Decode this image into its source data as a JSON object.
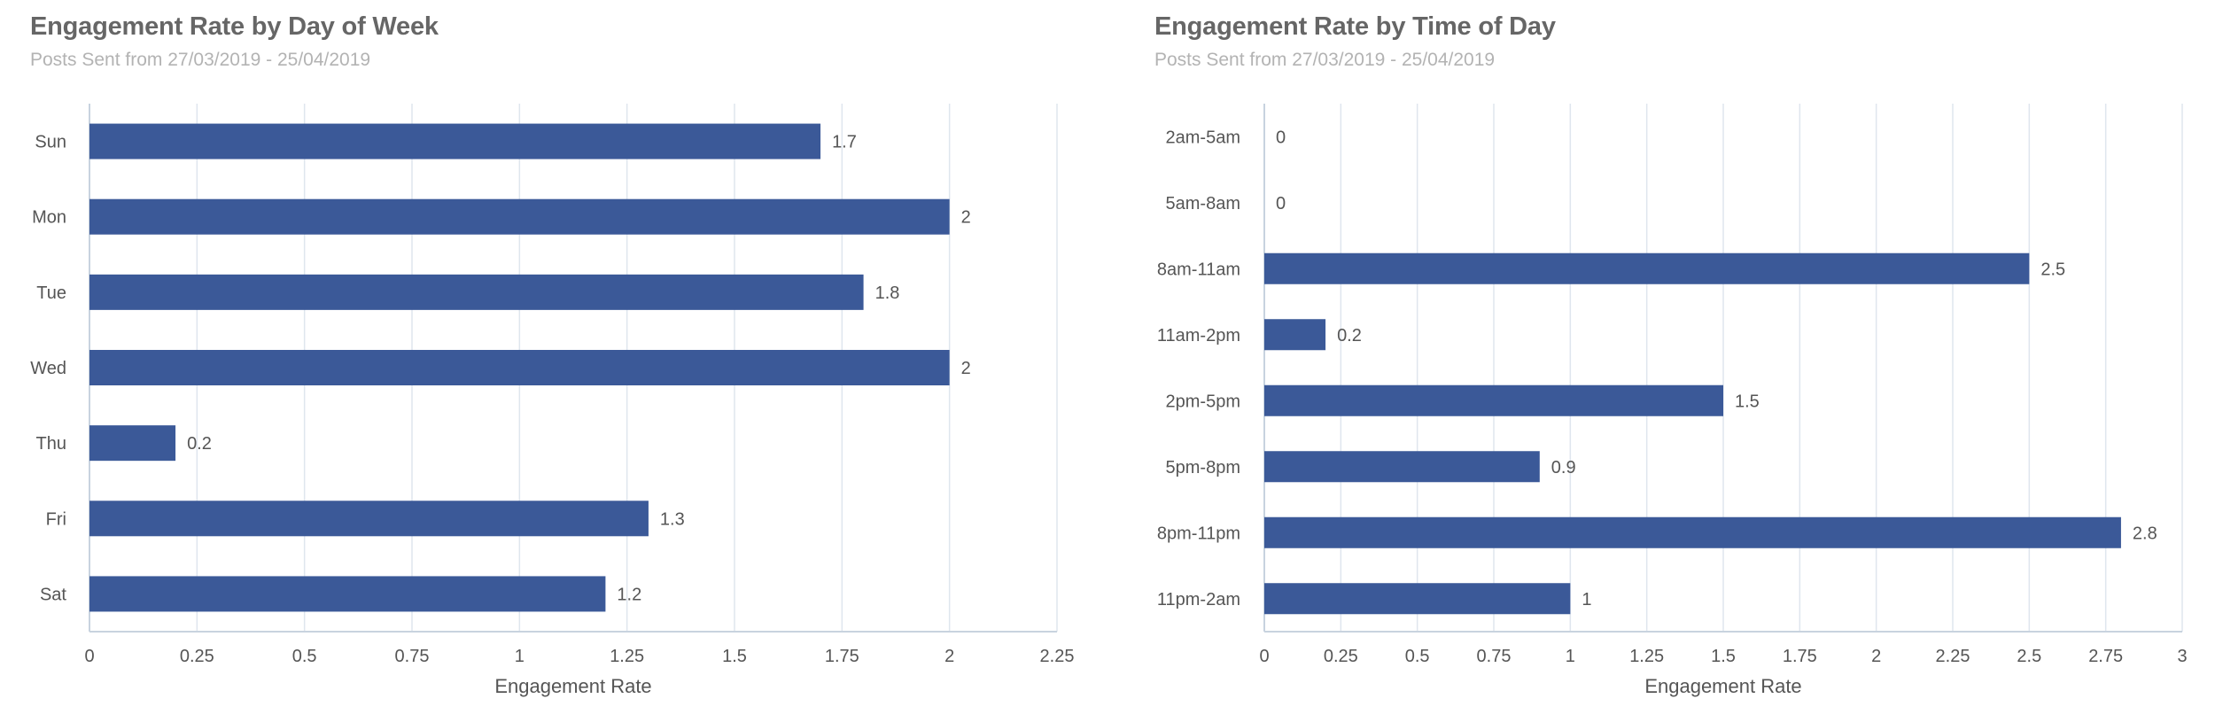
{
  "chart_data": [
    {
      "type": "bar",
      "orientation": "horizontal",
      "title": "Engagement Rate by Day of Week",
      "subtitle": "Posts Sent from 27/03/2019 - 25/04/2019",
      "categories": [
        "Sun",
        "Mon",
        "Tue",
        "Wed",
        "Thu",
        "Fri",
        "Sat"
      ],
      "values": [
        1.7,
        2,
        1.8,
        2,
        0.2,
        1.3,
        1.2
      ],
      "value_labels": [
        "1.7",
        "2",
        "1.8",
        "2",
        "0.2",
        "1.3",
        "1.2"
      ],
      "xlabel": "Engagement Rate",
      "ylabel": "",
      "xlim": [
        0,
        2.25
      ],
      "xticks": [
        "0",
        "0.25",
        "0.5",
        "0.75",
        "1",
        "1.25",
        "1.5",
        "1.75",
        "2",
        "2.25"
      ],
      "grid": true,
      "legend": "none",
      "bar_color": "#3b5998"
    },
    {
      "type": "bar",
      "orientation": "horizontal",
      "title": "Engagement Rate by Time of Day",
      "subtitle": "Posts Sent from 27/03/2019 - 25/04/2019",
      "categories": [
        "2am-5am",
        "5am-8am",
        "8am-11am",
        "11am-2pm",
        "2pm-5pm",
        "5pm-8pm",
        "8pm-11pm",
        "11pm-2am"
      ],
      "values": [
        0,
        0,
        2.5,
        0.2,
        1.5,
        0.9,
        2.8,
        1
      ],
      "value_labels": [
        "0",
        "0",
        "2.5",
        "0.2",
        "1.5",
        "0.9",
        "2.8",
        "1"
      ],
      "xlabel": "Engagement Rate",
      "ylabel": "",
      "xlim": [
        0,
        3
      ],
      "xticks": [
        "0",
        "0.25",
        "0.5",
        "0.75",
        "1",
        "1.25",
        "1.5",
        "1.75",
        "2",
        "2.25",
        "2.5",
        "2.75",
        "3"
      ],
      "grid": true,
      "legend": "none",
      "bar_color": "#3b5998"
    }
  ]
}
